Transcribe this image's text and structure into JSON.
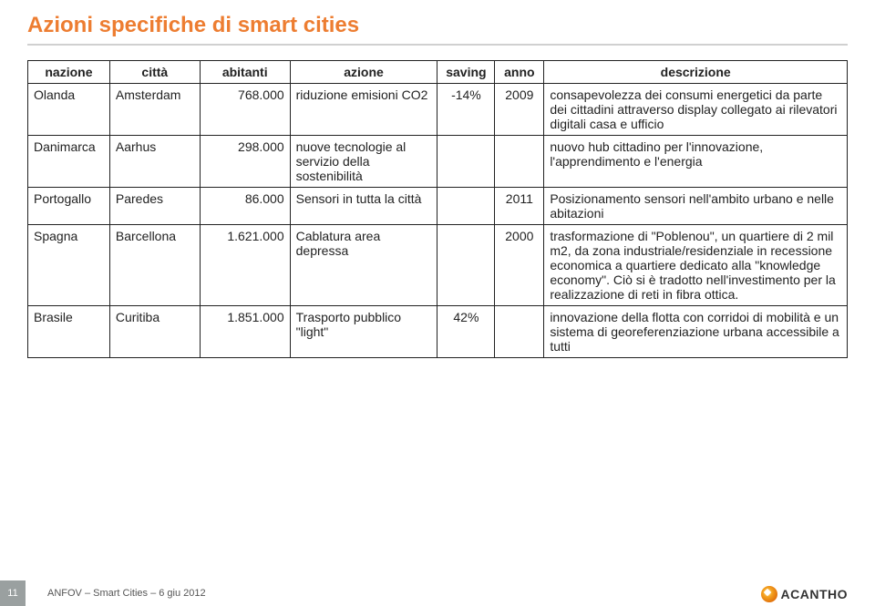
{
  "colors": {
    "title": "#ed7d31",
    "underline": "#d0d0d0",
    "border": "#222222",
    "text": "#222222",
    "footer_box_bg": "#9aa0a0",
    "footer_text": "#555555",
    "background": "#ffffff"
  },
  "title": "Azioni specifiche di smart cities",
  "table": {
    "columns": [
      "nazione",
      "città",
      "abitanti",
      "azione",
      "saving",
      "anno",
      "descrizione"
    ],
    "col_widths_pct": [
      10,
      11,
      11,
      18,
      7,
      6,
      37
    ],
    "fontsize": 14,
    "rows": [
      {
        "nazione": "Olanda",
        "citta": "Amsterdam",
        "abitanti": "768.000",
        "azione": "riduzione emisioni CO2",
        "saving": "-14%",
        "anno": "2009",
        "descrizione": "consapevolezza dei consumi energetici da parte dei cittadini attraverso display collegato ai rilevatori digitali casa e ufficio"
      },
      {
        "nazione": "Danimarca",
        "citta": "Aarhus",
        "abitanti": "298.000",
        "azione": "nuove tecnologie al servizio della sostenibilità",
        "saving": "",
        "anno": "",
        "descrizione": "nuovo hub cittadino per l'innovazione, l'apprendimento e l'energia"
      },
      {
        "nazione": "Portogallo",
        "citta": "Paredes",
        "abitanti": "86.000",
        "azione": "Sensori in tutta la città",
        "saving": "",
        "anno": "2011",
        "descrizione": "Posizionamento sensori nell'ambito urbano e nelle abitazioni"
      },
      {
        "nazione": "Spagna",
        "citta": "Barcellona",
        "abitanti": "1.621.000",
        "azione": "Cablatura area depressa",
        "saving": "",
        "anno": "2000",
        "descrizione": "trasformazione di \"Poblenou\", un quartiere di 2 mil m2, da zona industriale/residenziale in recessione economica a quartiere dedicato alla \"knowledge economy\". Ciò si è tradotto nell'investimento per la realizzazione di reti in fibra ottica."
      },
      {
        "nazione": "Brasile",
        "citta": "Curitiba",
        "abitanti": "1.851.000",
        "azione": "Trasporto pubblico \"light\"",
        "saving": "42%",
        "anno": "",
        "descrizione": "innovazione della flotta con corridoi di mobilità e un sistema di georeferenziazione urbana accessibile a tutti"
      }
    ]
  },
  "footer": {
    "page_number": "11",
    "text": "ANFOV – Smart Cities – 6 giu 2012",
    "logo_text": "ACANTHO"
  }
}
